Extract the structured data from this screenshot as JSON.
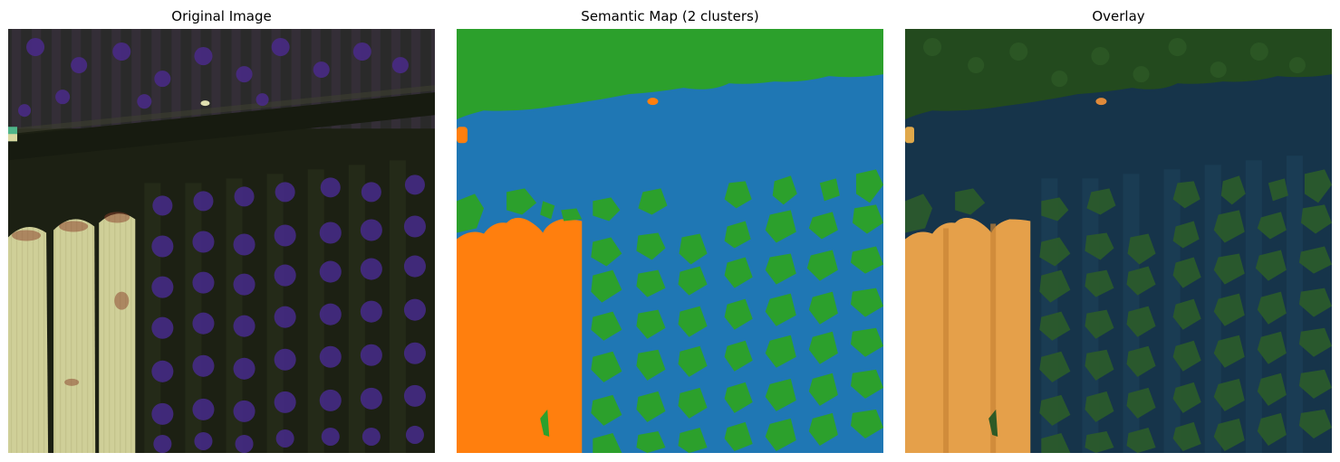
{
  "figure": {
    "panels": [
      {
        "title": "Original Image"
      },
      {
        "title": "Semantic Map (2 clusters)"
      },
      {
        "title": "Overlay"
      }
    ],
    "colors": {
      "cluster_blue": "#1f77b4",
      "cluster_orange": "#ff7f0e",
      "cluster_green": "#2ca02c",
      "soil_dark": "#1b2012",
      "plant_purple": "#4a2a8a",
      "crop_pale": "#c9c890"
    }
  }
}
